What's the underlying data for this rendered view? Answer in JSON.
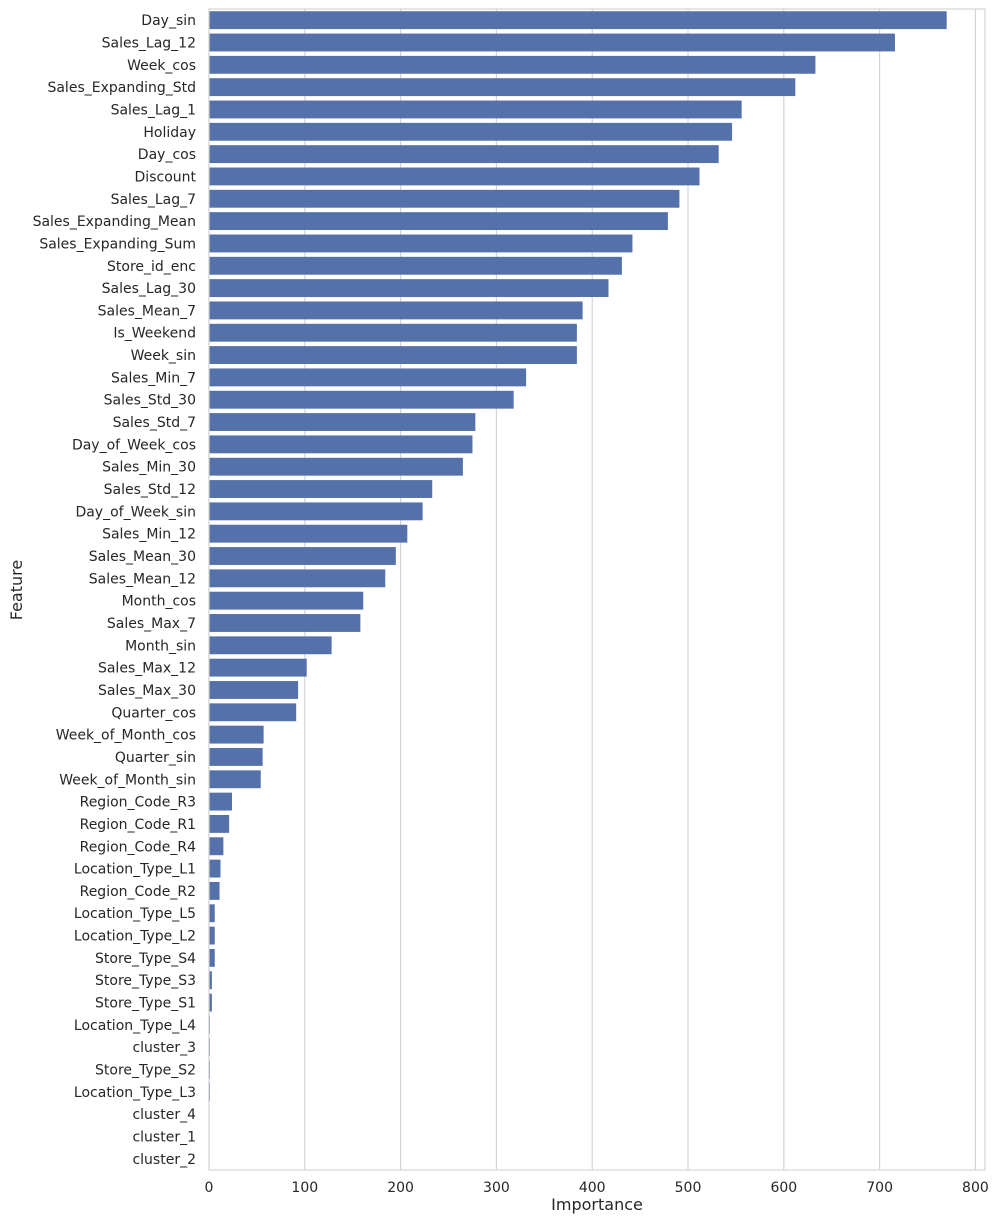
{
  "chart_data": {
    "type": "bar",
    "orientation": "horizontal",
    "xlabel": "Importance",
    "ylabel": "Feature",
    "xlim": [
      0,
      810
    ],
    "x_ticks": [
      0,
      100,
      200,
      300,
      400,
      500,
      600,
      700,
      800
    ],
    "grid": "vertical",
    "bar_color": "#5471A9",
    "gridline_color": "#d4d4d4",
    "categories": [
      "Day_sin",
      "Sales_Lag_12",
      "Week_cos",
      "Sales_Expanding_Std",
      "Sales_Lag_1",
      "Holiday",
      "Day_cos",
      "Discount",
      "Sales_Lag_7",
      "Sales_Expanding_Mean",
      "Sales_Expanding_Sum",
      "Store_id_enc",
      "Sales_Lag_30",
      "Sales_Mean_7",
      "Is_Weekend",
      "Week_sin",
      "Sales_Min_7",
      "Sales_Std_30",
      "Sales_Std_7",
      "Day_of_Week_cos",
      "Sales_Min_30",
      "Sales_Std_12",
      "Day_of_Week_sin",
      "Sales_Min_12",
      "Sales_Mean_30",
      "Sales_Mean_12",
      "Month_cos",
      "Sales_Max_7",
      "Month_sin",
      "Sales_Max_12",
      "Sales_Max_30",
      "Quarter_cos",
      "Week_of_Month_cos",
      "Quarter_sin",
      "Week_of_Month_sin",
      "Region_Code_R3",
      "Region_Code_R1",
      "Region_Code_R4",
      "Location_Type_L1",
      "Region_Code_R2",
      "Location_Type_L5",
      "Location_Type_L2",
      "Store_Type_S4",
      "Store_Type_S3",
      "Store_Type_S1",
      "Location_Type_L4",
      "cluster_3",
      "Store_Type_S2",
      "Location_Type_L3",
      "cluster_4",
      "cluster_1",
      "cluster_2"
    ],
    "values": [
      770,
      716,
      633,
      612,
      556,
      546,
      532,
      512,
      491,
      479,
      442,
      431,
      417,
      390,
      384,
      384,
      331,
      318,
      278,
      275,
      265,
      233,
      223,
      207,
      195,
      184,
      161,
      158,
      128,
      102,
      93,
      91,
      57,
      56,
      54,
      24,
      21,
      15,
      12,
      11,
      6,
      6,
      6,
      3,
      3,
      1,
      1,
      1,
      1,
      0,
      0,
      0
    ]
  }
}
